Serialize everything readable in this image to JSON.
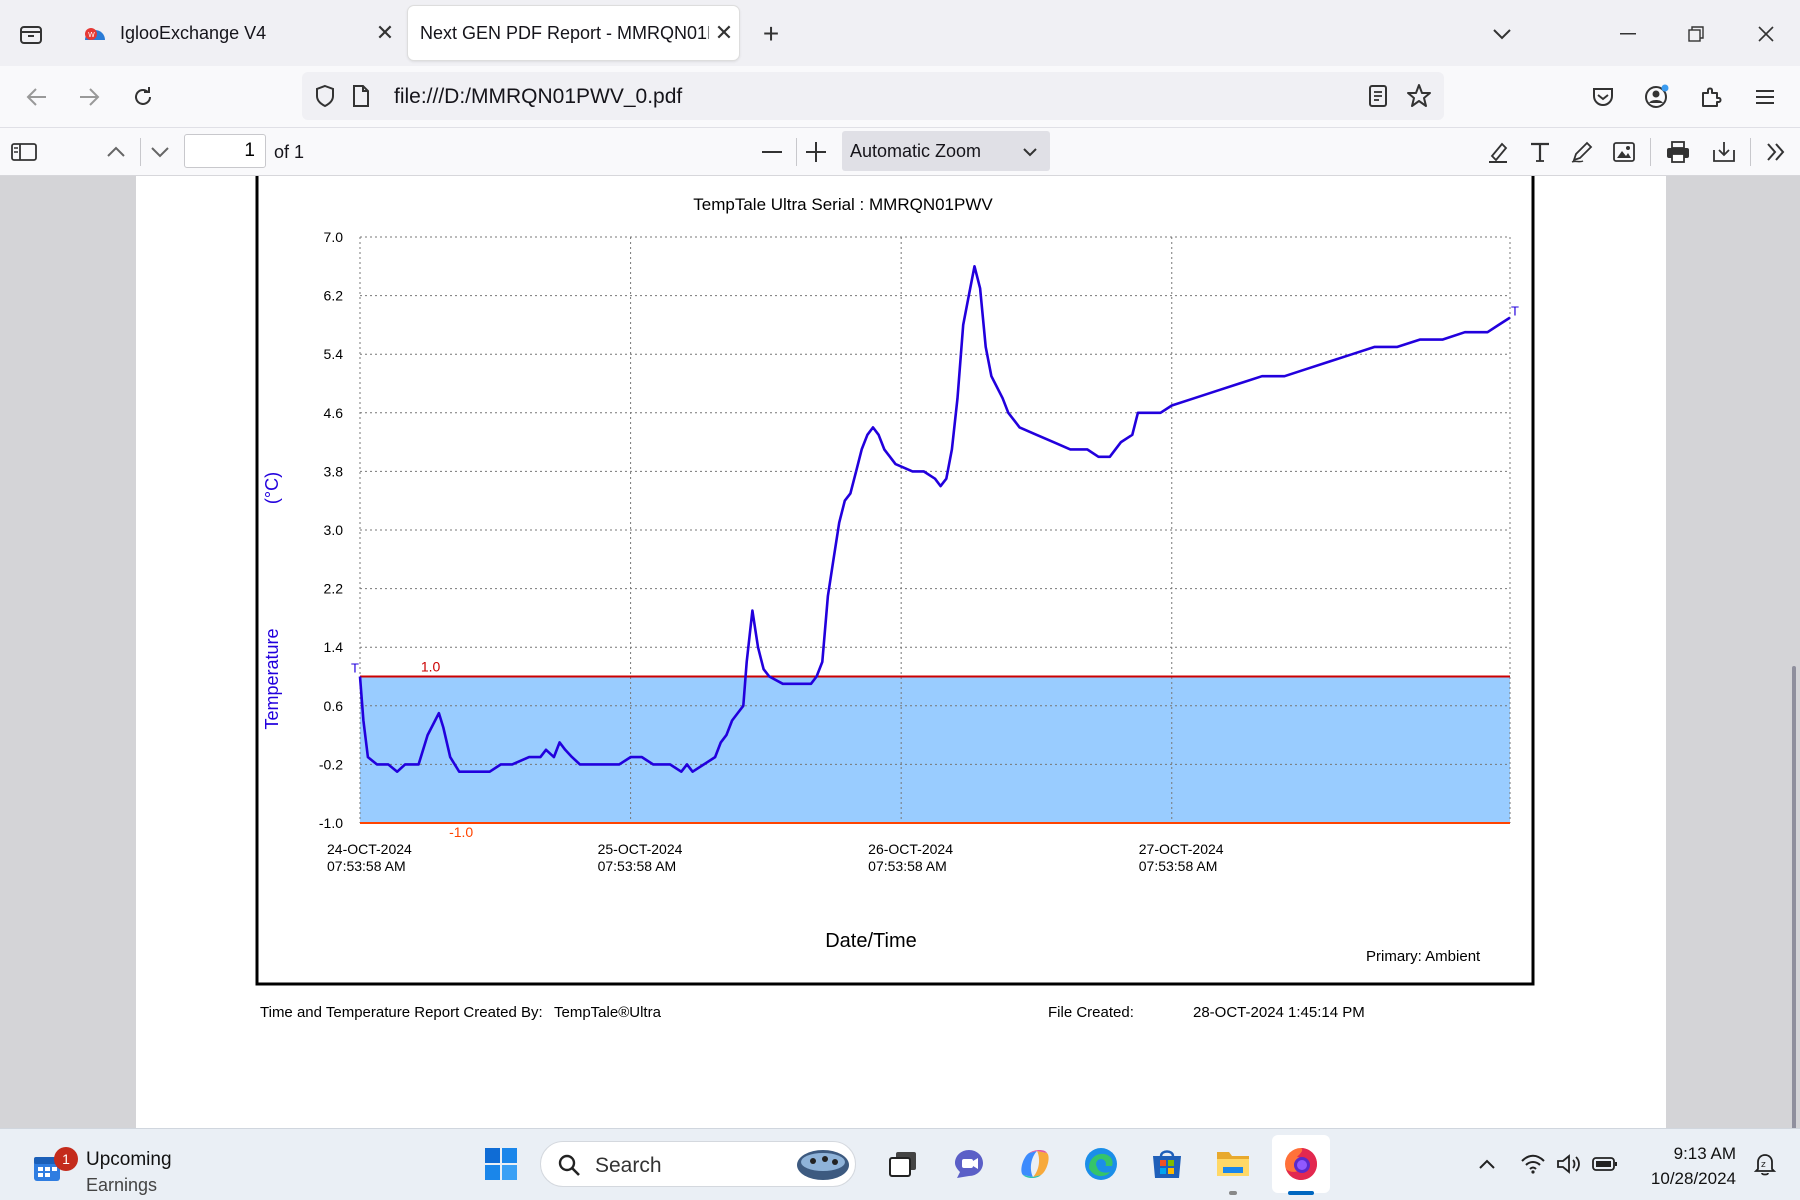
{
  "tabs": [
    {
      "title": "IglooExchange V4",
      "active": false
    },
    {
      "title": "Next GEN PDF Report - MMRQN01PWV_0.pdf",
      "active": true
    }
  ],
  "address_bar": {
    "url": "file:///D:/MMRQN01PWV_0.pdf"
  },
  "pdf_toolbar": {
    "page_number": "1",
    "page_count": "of 1",
    "zoom": "Automatic Zoom"
  },
  "report": {
    "created_by_label": "Time and Temperature Report Created By:",
    "created_by_value": "TempTale®Ultra",
    "file_created_label": "File Created:",
    "file_created_value": "28-OCT-2024  1:45:14 PM"
  },
  "chart_data": {
    "type": "line",
    "title": "TempTale Ultra  Serial : MMRQN01PWV",
    "xlabel": "Date/Time",
    "ylabel": "Temperature",
    "yunit": "(°C)",
    "ylim": [
      -1.0,
      7.0
    ],
    "yticks": [
      "7.0",
      "6.2",
      "5.4",
      "4.6",
      "3.8",
      "3.0",
      "2.2",
      "1.4",
      "0.6",
      "-0.2",
      "-1.0"
    ],
    "xlim_hours": [
      0,
      102
    ],
    "xticks": [
      {
        "date": "24-OCT-2024",
        "time": "07:53:58 AM"
      },
      {
        "date": "25-OCT-2024",
        "time": "07:53:58 AM"
      },
      {
        "date": "26-OCT-2024",
        "time": "07:53:58 AM"
      },
      {
        "date": "27-OCT-2024",
        "time": "07:53:58 AM"
      }
    ],
    "upper_limit": {
      "value": 1.0,
      "label": "1.0",
      "color": "#cc0000"
    },
    "lower_limit": {
      "value": -1.0,
      "label": "-1.0",
      "color": "#ff4400"
    },
    "band_color": "#99ccff",
    "series_color": "#2200dd",
    "start_marker": "T",
    "end_marker": "T",
    "legend": "Primary: Ambient",
    "grid": true,
    "series": [
      {
        "name": "Ambient",
        "points": [
          [
            0.0,
            1.0
          ],
          [
            0.3,
            0.4
          ],
          [
            0.7,
            -0.1
          ],
          [
            1.5,
            -0.2
          ],
          [
            2.5,
            -0.2
          ],
          [
            3.3,
            -0.3
          ],
          [
            4.0,
            -0.2
          ],
          [
            5.2,
            -0.2
          ],
          [
            6.0,
            0.2
          ],
          [
            7.0,
            0.5
          ],
          [
            7.4,
            0.3
          ],
          [
            8.0,
            -0.1
          ],
          [
            8.8,
            -0.3
          ],
          [
            10.0,
            -0.3
          ],
          [
            11.5,
            -0.3
          ],
          [
            12.5,
            -0.2
          ],
          [
            13.5,
            -0.2
          ],
          [
            15.0,
            -0.1
          ],
          [
            16.0,
            -0.1
          ],
          [
            16.5,
            0.0
          ],
          [
            17.2,
            -0.1
          ],
          [
            17.7,
            0.1
          ],
          [
            18.2,
            0.0
          ],
          [
            18.8,
            -0.1
          ],
          [
            19.5,
            -0.2
          ],
          [
            22.0,
            -0.2
          ],
          [
            23.0,
            -0.2
          ],
          [
            24.0,
            -0.1
          ],
          [
            25.0,
            -0.1
          ],
          [
            26.0,
            -0.2
          ],
          [
            27.5,
            -0.2
          ],
          [
            28.5,
            -0.3
          ],
          [
            29.0,
            -0.2
          ],
          [
            29.5,
            -0.3
          ],
          [
            30.5,
            -0.2
          ],
          [
            31.5,
            -0.1
          ],
          [
            32.0,
            0.1
          ],
          [
            32.5,
            0.2
          ],
          [
            33.0,
            0.4
          ],
          [
            33.5,
            0.5
          ],
          [
            34.0,
            0.6
          ],
          [
            34.3,
            1.2
          ],
          [
            34.8,
            1.9
          ],
          [
            35.3,
            1.4
          ],
          [
            35.8,
            1.1
          ],
          [
            36.3,
            1.0
          ],
          [
            37.5,
            0.9
          ],
          [
            39.0,
            0.9
          ],
          [
            40.0,
            0.9
          ],
          [
            40.5,
            1.0
          ],
          [
            41.0,
            1.2
          ],
          [
            41.5,
            2.1
          ],
          [
            42.0,
            2.6
          ],
          [
            42.5,
            3.1
          ],
          [
            43.0,
            3.4
          ],
          [
            43.5,
            3.5
          ],
          [
            44.0,
            3.8
          ],
          [
            44.5,
            4.1
          ],
          [
            45.0,
            4.3
          ],
          [
            45.5,
            4.4
          ],
          [
            46.0,
            4.3
          ],
          [
            46.5,
            4.1
          ],
          [
            47.5,
            3.9
          ],
          [
            49.0,
            3.8
          ],
          [
            50.0,
            3.8
          ],
          [
            51.0,
            3.7
          ],
          [
            51.5,
            3.6
          ],
          [
            52.0,
            3.7
          ],
          [
            52.5,
            4.1
          ],
          [
            53.0,
            4.8
          ],
          [
            53.5,
            5.8
          ],
          [
            54.0,
            6.2
          ],
          [
            54.5,
            6.6
          ],
          [
            55.0,
            6.3
          ],
          [
            55.5,
            5.5
          ],
          [
            56.0,
            5.1
          ],
          [
            57.0,
            4.8
          ],
          [
            57.5,
            4.6
          ],
          [
            58.5,
            4.4
          ],
          [
            60.0,
            4.3
          ],
          [
            61.5,
            4.2
          ],
          [
            63.0,
            4.1
          ],
          [
            64.5,
            4.1
          ],
          [
            65.5,
            4.0
          ],
          [
            66.5,
            4.0
          ],
          [
            67.5,
            4.2
          ],
          [
            68.5,
            4.3
          ],
          [
            69.0,
            4.6
          ],
          [
            70.0,
            4.6
          ],
          [
            71.0,
            4.6
          ],
          [
            72.0,
            4.7
          ],
          [
            74.0,
            4.8
          ],
          [
            76.0,
            4.9
          ],
          [
            78.0,
            5.0
          ],
          [
            80.0,
            5.1
          ],
          [
            82.0,
            5.1
          ],
          [
            84.0,
            5.2
          ],
          [
            86.0,
            5.3
          ],
          [
            88.0,
            5.4
          ],
          [
            90.0,
            5.5
          ],
          [
            92.0,
            5.5
          ],
          [
            94.0,
            5.6
          ],
          [
            96.0,
            5.6
          ],
          [
            98.0,
            5.7
          ],
          [
            100.0,
            5.7
          ],
          [
            101.0,
            5.8
          ],
          [
            102.0,
            5.9
          ]
        ]
      }
    ]
  },
  "taskbar": {
    "widget_title": "Upcoming",
    "widget_subtitle": "Earnings",
    "widget_badge": "1",
    "search_placeholder": "Search",
    "time": "9:13 AM",
    "date": "10/28/2024"
  }
}
